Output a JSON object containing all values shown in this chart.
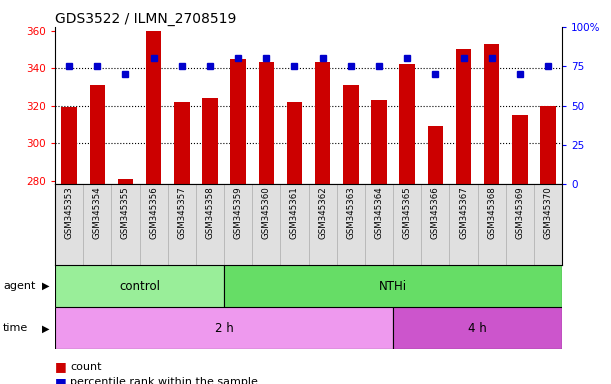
{
  "title": "GDS3522 / ILMN_2708519",
  "samples": [
    "GSM345353",
    "GSM345354",
    "GSM345355",
    "GSM345356",
    "GSM345357",
    "GSM345358",
    "GSM345359",
    "GSM345360",
    "GSM345361",
    "GSM345362",
    "GSM345363",
    "GSM345364",
    "GSM345365",
    "GSM345366",
    "GSM345367",
    "GSM345368",
    "GSM345369",
    "GSM345370"
  ],
  "counts": [
    319,
    331,
    281,
    360,
    322,
    324,
    345,
    343,
    322,
    343,
    331,
    323,
    342,
    309,
    350,
    353,
    315,
    320
  ],
  "percentile_ranks": [
    75,
    75,
    70,
    80,
    75,
    75,
    80,
    80,
    75,
    80,
    75,
    75,
    80,
    70,
    80,
    80,
    70,
    75
  ],
  "ylim_left": [
    278,
    362
  ],
  "ylim_right": [
    0,
    100
  ],
  "yticks_left": [
    280,
    300,
    320,
    340,
    360
  ],
  "yticks_right": [
    0,
    25,
    50,
    75,
    100
  ],
  "ytick_labels_right": [
    "0",
    "25",
    "50",
    "75",
    "100%"
  ],
  "bar_color": "#cc0000",
  "dot_color": "#0000cc",
  "agent_groups": [
    {
      "label": "control",
      "start": 0,
      "end": 6,
      "color": "#99ee99"
    },
    {
      "label": "NTHi",
      "start": 6,
      "end": 18,
      "color": "#66dd66"
    }
  ],
  "time_groups": [
    {
      "label": "2 h",
      "start": 0,
      "end": 12,
      "color": "#ee99ee"
    },
    {
      "label": "4 h",
      "start": 12,
      "end": 18,
      "color": "#cc55cc"
    }
  ],
  "agent_label": "agent",
  "time_label": "time",
  "legend_count_label": "count",
  "legend_pct_label": "percentile rank within the sample",
  "background_color": "#ffffff",
  "title_fontsize": 10,
  "tick_fontsize": 7.5,
  "sample_fontsize": 6.2,
  "row_label_fontsize": 8,
  "row_text_fontsize": 8.5,
  "legend_fontsize": 8
}
